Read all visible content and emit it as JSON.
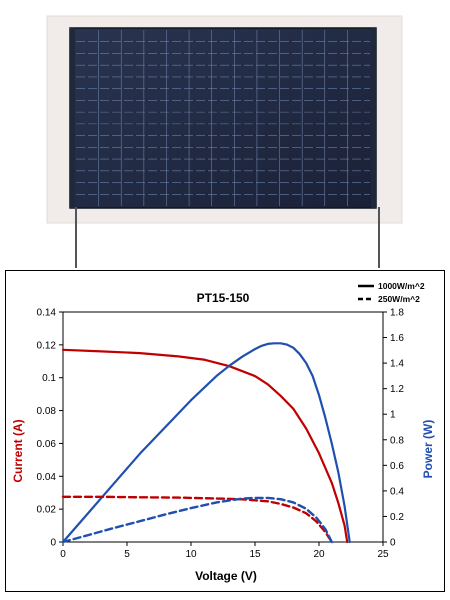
{
  "chart_data": {
    "type": "line",
    "title": "PT15-150",
    "xlabel": "Voltage (V)",
    "ylabel_left": "Current (A)",
    "ylabel_right": "Power (W)",
    "xlim": [
      0,
      25
    ],
    "ylim_left": [
      0,
      0.14
    ],
    "ylim_right": [
      0,
      1.8
    ],
    "x_ticks": [
      "0",
      "5",
      "10",
      "15",
      "20",
      "25"
    ],
    "y_left_ticks": [
      "0",
      "0.02",
      "0.04",
      "0.06",
      "0.08",
      "0.1",
      "0.12",
      "0.14"
    ],
    "y_right_ticks": [
      "0",
      "0.2",
      "0.4",
      "0.6",
      "0.8",
      "1",
      "1.2",
      "1.4",
      "1.6",
      "1.8"
    ],
    "grid": false,
    "legend_position": "top-right",
    "legend": [
      {
        "label": "1000W/m^2",
        "style": "solid"
      },
      {
        "label": "250W/m^2",
        "style": "dashed"
      }
    ],
    "series": [
      {
        "irradiance": "1000W/m^2",
        "quantity": "current",
        "axis": "left",
        "color": "#c00000",
        "dash": false,
        "x": [
          0,
          3,
          6,
          9,
          11,
          13,
          15,
          16,
          17,
          18,
          19,
          20,
          21,
          21.5,
          22,
          22.2
        ],
        "y": [
          0.117,
          0.116,
          0.115,
          0.113,
          0.111,
          0.107,
          0.101,
          0.096,
          0.089,
          0.081,
          0.069,
          0.054,
          0.036,
          0.024,
          0.01,
          0.0
        ]
      },
      {
        "irradiance": "1000W/m^2",
        "quantity": "power",
        "axis": "right",
        "color": "#1f4faf",
        "dash": false,
        "x": [
          0,
          2,
          4,
          6,
          8,
          10,
          12,
          13,
          14,
          15,
          15.5,
          16,
          16.5,
          17,
          17.5,
          18,
          18.5,
          19,
          19.5,
          20,
          20.5,
          21,
          21.5,
          22,
          22.4
        ],
        "y": [
          0,
          0.23,
          0.46,
          0.69,
          0.9,
          1.11,
          1.3,
          1.38,
          1.45,
          1.51,
          1.535,
          1.55,
          1.555,
          1.555,
          1.545,
          1.52,
          1.47,
          1.4,
          1.3,
          1.15,
          0.97,
          0.77,
          0.55,
          0.28,
          0.0
        ]
      },
      {
        "irradiance": "250W/m^2",
        "quantity": "current",
        "axis": "left",
        "color": "#c00000",
        "dash": true,
        "x": [
          0,
          3,
          6,
          9,
          12,
          14,
          16,
          17,
          18,
          19,
          19.8,
          20.5,
          21
        ],
        "y": [
          0.0275,
          0.0275,
          0.0272,
          0.027,
          0.0265,
          0.026,
          0.0248,
          0.0232,
          0.021,
          0.0175,
          0.0125,
          0.006,
          0.0
        ]
      },
      {
        "irradiance": "250W/m^2",
        "quantity": "power",
        "axis": "right",
        "color": "#1f4faf",
        "dash": true,
        "x": [
          0,
          2,
          4,
          6,
          8,
          10,
          12,
          14,
          15,
          16,
          17,
          18,
          19,
          19.8,
          20.5,
          21
        ],
        "y": [
          0,
          0.055,
          0.11,
          0.163,
          0.216,
          0.265,
          0.31,
          0.34,
          0.345,
          0.345,
          0.335,
          0.31,
          0.26,
          0.19,
          0.1,
          0.0
        ]
      }
    ]
  }
}
